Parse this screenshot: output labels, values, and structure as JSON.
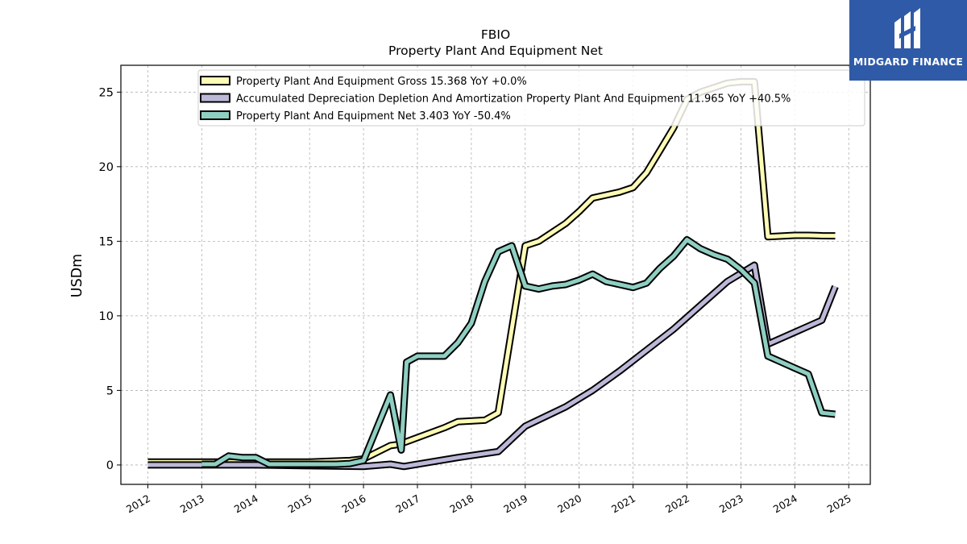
{
  "brand": {
    "name": "MIDGARD FINANCE",
    "icon": "midgard-logo-icon",
    "color": "#2f5aa8"
  },
  "chart_data": {
    "type": "line",
    "title": "FBIO",
    "subtitle": "Property Plant And Equipment Net",
    "ylabel": "USDm",
    "xlabel": "",
    "xlim": [
      2011.5,
      2025.4
    ],
    "ylim": [
      -1.3,
      26.8
    ],
    "x_ticks": [
      "2012",
      "2013",
      "2014",
      "2015",
      "2016",
      "2017",
      "2018",
      "2019",
      "2020",
      "2021",
      "2022",
      "2023",
      "2024",
      "2025"
    ],
    "y_ticks": [
      "0",
      "5",
      "10",
      "15",
      "20",
      "25"
    ],
    "grid": true,
    "legend_position": "top-center",
    "series": [
      {
        "name": "Property Plant And Equipment Gross",
        "legend_label": "Property Plant And Equipment Gross  15.368 YoY +0.0%",
        "color": "#fdfbb5",
        "x": [
          2012.0,
          2013.25,
          2014.0,
          2015.0,
          2015.75,
          2016.0,
          2016.5,
          2016.7,
          2016.75,
          2017.5,
          2017.75,
          2018.25,
          2018.5,
          2019.0,
          2019.25,
          2019.75,
          2020.0,
          2020.25,
          2020.5,
          2020.75,
          2021.0,
          2021.25,
          2021.5,
          2021.75,
          2022.0,
          2022.25,
          2022.5,
          2022.75,
          2023.0,
          2023.25,
          2023.5,
          2023.75,
          2024.0,
          2024.25,
          2024.5,
          2024.75
        ],
        "y": [
          0.2,
          0.2,
          0.2,
          0.2,
          0.3,
          0.4,
          1.3,
          1.4,
          1.5,
          2.5,
          2.9,
          3.0,
          3.5,
          14.7,
          15.0,
          16.2,
          17.0,
          17.9,
          18.1,
          18.3,
          18.6,
          19.6,
          21.1,
          22.6,
          24.5,
          25.0,
          25.3,
          25.6,
          25.7,
          25.7,
          15.3,
          15.35,
          15.4,
          15.4,
          15.37,
          15.368
        ]
      },
      {
        "name": "Accumulated Depreciation Depletion And Amortization Property Plant And Equipment",
        "legend_label": "Accumulated Depreciation Depletion And Amortization Property Plant And Equipment  11.965 YoY +40.5%",
        "color": "#bcb8d8",
        "x": [
          2012.0,
          2013.0,
          2014.0,
          2015.0,
          2016.0,
          2016.5,
          2016.75,
          2017.75,
          2018.5,
          2019.0,
          2019.75,
          2020.25,
          2020.75,
          2021.25,
          2021.75,
          2022.25,
          2022.75,
          2023.25,
          2023.5,
          2024.0,
          2024.5,
          2024.75
        ],
        "y": [
          0.0,
          0.0,
          0.0,
          -0.05,
          -0.1,
          0.05,
          -0.1,
          0.5,
          0.9,
          2.6,
          3.9,
          5.0,
          6.3,
          7.7,
          9.1,
          10.7,
          12.3,
          13.4,
          8.1,
          8.9,
          9.7,
          11.965
        ]
      },
      {
        "name": "Property Plant And Equipment Net",
        "legend_label": "Property Plant And Equipment Net  3.403 YoY -50.4%",
        "color": "#8ecfc2",
        "x": [
          2013.0,
          2013.25,
          2013.5,
          2013.75,
          2014.0,
          2014.25,
          2015.0,
          2015.5,
          2015.75,
          2016.0,
          2016.25,
          2016.5,
          2016.7,
          2016.8,
          2017.0,
          2017.25,
          2017.5,
          2017.75,
          2018.0,
          2018.25,
          2018.5,
          2018.75,
          2019.0,
          2019.25,
          2019.5,
          2019.75,
          2020.0,
          2020.25,
          2020.5,
          2020.75,
          2021.0,
          2021.25,
          2021.5,
          2021.75,
          2022.0,
          2022.25,
          2022.5,
          2022.75,
          2023.0,
          2023.25,
          2023.5,
          2023.75,
          2024.0,
          2024.25,
          2024.5,
          2024.75
        ],
        "y": [
          0.05,
          0.05,
          0.6,
          0.5,
          0.5,
          0.05,
          0.05,
          0.05,
          0.1,
          0.3,
          2.5,
          4.7,
          1.0,
          6.9,
          7.3,
          7.3,
          7.3,
          8.2,
          9.5,
          12.3,
          14.3,
          14.7,
          12.0,
          11.8,
          12.0,
          12.1,
          12.4,
          12.8,
          12.3,
          12.1,
          11.9,
          12.2,
          13.2,
          14.0,
          15.1,
          14.5,
          14.1,
          13.8,
          13.1,
          12.2,
          7.3,
          6.9,
          6.5,
          6.1,
          3.5,
          3.403
        ]
      }
    ]
  }
}
